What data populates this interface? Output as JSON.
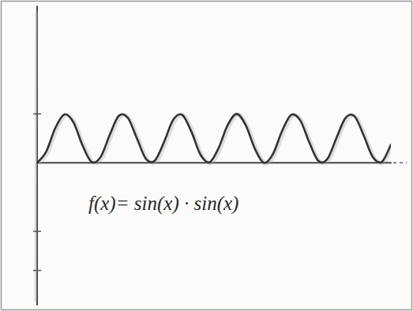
{
  "chart_data": {
    "type": "line",
    "annotation": "f(x)= sin(x) · sin(x)",
    "x": [
      0,
      0.5,
      1,
      1.5,
      2,
      2.5,
      3,
      3.5,
      4,
      4.5,
      5,
      5.5,
      6,
      6.5,
      7,
      7.5,
      8,
      8.5,
      9,
      9.5,
      10,
      10.5,
      11,
      11.5,
      12,
      12.5,
      13,
      13.5,
      14,
      14.5,
      15,
      15.5,
      16,
      16.5,
      17,
      17.5,
      18,
      18.5,
      19,
      19.5
    ],
    "values": [
      0,
      0.23,
      0.71,
      0.99,
      0.83,
      0.36,
      0.02,
      0.12,
      0.57,
      0.96,
      0.92,
      0.5,
      0.08,
      0.05,
      0.43,
      0.88,
      0.98,
      0.64,
      0.17,
      0.01,
      0.3,
      0.77,
      1.0,
      0.77,
      0.29,
      0.0,
      0.18,
      0.65,
      0.98,
      0.87,
      0.42,
      0.04,
      0.08,
      0.51,
      0.92,
      0.95,
      0.56,
      0.12,
      0.02,
      0.37
    ],
    "color": "#333333",
    "xlim": [
      0,
      19.5
    ],
    "ylim": [
      -2.9,
      3.2
    ],
    "yticks": [
      1,
      -1.4,
      -2.2
    ],
    "grid": false,
    "tick_labels": false
  }
}
